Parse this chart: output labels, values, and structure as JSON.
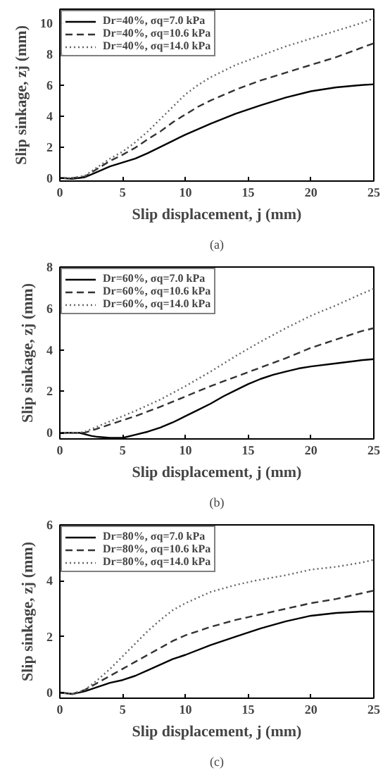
{
  "chart_data": [
    {
      "type": "line",
      "xlabel": "Slip displacement, j (mm)",
      "ylabel": "Slip sinkage, zj (mm)",
      "annotations": [
        "(a)"
      ],
      "xlim": [
        0,
        25
      ],
      "ylim": [
        -0.2,
        10.9
      ],
      "xticks": [
        0,
        5,
        10,
        15,
        20,
        25
      ],
      "yticks": [
        0,
        2,
        4,
        6,
        8,
        10
      ],
      "grid": false,
      "legend": "top left",
      "series": [
        {
          "name": "Dr=40%, σq=7.0 kPa",
          "color": "#000000",
          "line_style": "solid",
          "x": [
            0,
            1,
            2,
            3,
            4,
            5,
            6,
            7,
            8,
            9,
            10,
            12,
            14,
            16,
            18,
            20,
            22,
            24,
            25
          ],
          "values": [
            0,
            -0.05,
            0.05,
            0.4,
            0.75,
            1.0,
            1.25,
            1.6,
            2.0,
            2.4,
            2.8,
            3.5,
            4.15,
            4.7,
            5.2,
            5.6,
            5.85,
            6.0,
            6.05
          ]
        },
        {
          "name": "Dr=40%, σq=10.6 kPa",
          "color": "#333333",
          "line_style": "dashed",
          "x": [
            0,
            1,
            2,
            3,
            4,
            5,
            6,
            7,
            8,
            9,
            10,
            11,
            12,
            14,
            16,
            18,
            20,
            22,
            24,
            25
          ],
          "values": [
            0,
            0,
            0.1,
            0.6,
            1.1,
            1.5,
            1.95,
            2.5,
            3.0,
            3.6,
            4.1,
            4.6,
            5.0,
            5.7,
            6.3,
            6.8,
            7.3,
            7.8,
            8.4,
            8.7
          ]
        },
        {
          "name": "Dr=40%, σq=14.0 kPa",
          "color": "#666666",
          "line_style": "dotted",
          "x": [
            0,
            1,
            2,
            3,
            4,
            5,
            6,
            7,
            8,
            9,
            10,
            11,
            12,
            14,
            16,
            18,
            20,
            22,
            24,
            25
          ],
          "values": [
            0,
            0,
            0.15,
            0.7,
            1.25,
            1.7,
            2.3,
            3.0,
            3.8,
            4.6,
            5.4,
            6.0,
            6.5,
            7.3,
            7.9,
            8.5,
            9.0,
            9.5,
            10.0,
            10.3
          ]
        }
      ]
    },
    {
      "type": "line",
      "xlabel": "Slip displacement, j (mm)",
      "ylabel": "Slip sinkage, zj (mm)",
      "annotations": [
        "(b)"
      ],
      "xlim": [
        0,
        25
      ],
      "ylim": [
        -0.3,
        8
      ],
      "xticks": [
        0,
        5,
        10,
        15,
        20,
        25
      ],
      "yticks": [
        0,
        2,
        4,
        6,
        8
      ],
      "grid": false,
      "legend": "top left",
      "series": [
        {
          "name": "Dr=60%, σq=7.0 kPa",
          "color": "#000000",
          "line_style": "solid",
          "x": [
            0,
            1.5,
            2.5,
            3,
            4,
            5,
            6,
            7,
            8,
            9,
            10,
            11,
            12,
            13,
            14,
            15,
            16,
            17,
            18,
            19,
            20,
            22,
            24,
            25
          ],
          "values": [
            0,
            0,
            -0.15,
            -0.2,
            -0.25,
            -0.25,
            -0.1,
            0.05,
            0.25,
            0.5,
            0.8,
            1.1,
            1.4,
            1.75,
            2.05,
            2.35,
            2.6,
            2.8,
            2.95,
            3.1,
            3.2,
            3.35,
            3.5,
            3.55
          ]
        },
        {
          "name": "Dr=60%, σq=10.6 kPa",
          "color": "#333333",
          "line_style": "dashed",
          "x": [
            0,
            1.5,
            2,
            3,
            4,
            5,
            6,
            8,
            10,
            12,
            14,
            16,
            18,
            20,
            22,
            24,
            25
          ],
          "values": [
            0,
            0,
            0,
            0.2,
            0.4,
            0.6,
            0.8,
            1.25,
            1.75,
            2.25,
            2.7,
            3.15,
            3.6,
            4.1,
            4.5,
            4.9,
            5.05
          ]
        },
        {
          "name": "Dr=60%, σq=14.0 kPa",
          "color": "#666666",
          "line_style": "dotted",
          "x": [
            0,
            1.5,
            2,
            3,
            4,
            5,
            6,
            8,
            10,
            12,
            14,
            16,
            18,
            20,
            22,
            24,
            25
          ],
          "values": [
            0,
            0,
            0.05,
            0.3,
            0.55,
            0.8,
            1.05,
            1.6,
            2.25,
            2.95,
            3.7,
            4.4,
            5.05,
            5.65,
            6.15,
            6.7,
            6.95
          ]
        }
      ]
    },
    {
      "type": "line",
      "xlabel": "Slip displacement, j (mm)",
      "ylabel": "Slip sinkage, zj (mm)",
      "annotations": [
        "(c)"
      ],
      "xlim": [
        0,
        25
      ],
      "ylim": [
        -0.2,
        6
      ],
      "xticks": [
        0,
        5,
        10,
        15,
        20,
        25
      ],
      "yticks": [
        0,
        2,
        4,
        6
      ],
      "grid": false,
      "legend": "top left",
      "series": [
        {
          "name": "Dr=80%, σq=7.0 kPa",
          "color": "#000000",
          "line_style": "solid",
          "x": [
            0,
            1,
            2,
            3,
            4,
            5,
            6,
            7,
            8,
            9,
            10,
            12,
            14,
            16,
            18,
            20,
            22,
            24,
            25
          ],
          "values": [
            0,
            -0.05,
            0.05,
            0.2,
            0.35,
            0.45,
            0.6,
            0.8,
            1.0,
            1.2,
            1.35,
            1.7,
            2.0,
            2.3,
            2.55,
            2.75,
            2.85,
            2.9,
            2.9
          ]
        },
        {
          "name": "Dr=80%, σq=10.6 kPa",
          "color": "#333333",
          "line_style": "dashed",
          "x": [
            0,
            1,
            2,
            3,
            4,
            5,
            6,
            7,
            8,
            9,
            10,
            11,
            12,
            14,
            16,
            18,
            20,
            22,
            24,
            25
          ],
          "values": [
            0,
            -0.05,
            0.1,
            0.35,
            0.6,
            0.85,
            1.1,
            1.35,
            1.6,
            1.85,
            2.05,
            2.2,
            2.35,
            2.6,
            2.8,
            3.0,
            3.2,
            3.35,
            3.55,
            3.65
          ]
        },
        {
          "name": "Dr=80%, σq=14.0 kPa",
          "color": "#666666",
          "line_style": "dotted",
          "x": [
            0,
            1,
            2,
            3,
            4,
            5,
            6,
            7,
            8,
            9,
            10,
            12,
            14,
            15.5,
            18,
            20,
            22,
            24,
            25
          ],
          "values": [
            0,
            -0.05,
            0.1,
            0.45,
            0.85,
            1.3,
            1.75,
            2.2,
            2.6,
            2.95,
            3.2,
            3.6,
            3.85,
            4.0,
            4.2,
            4.4,
            4.5,
            4.65,
            4.75
          ]
        }
      ]
    }
  ]
}
